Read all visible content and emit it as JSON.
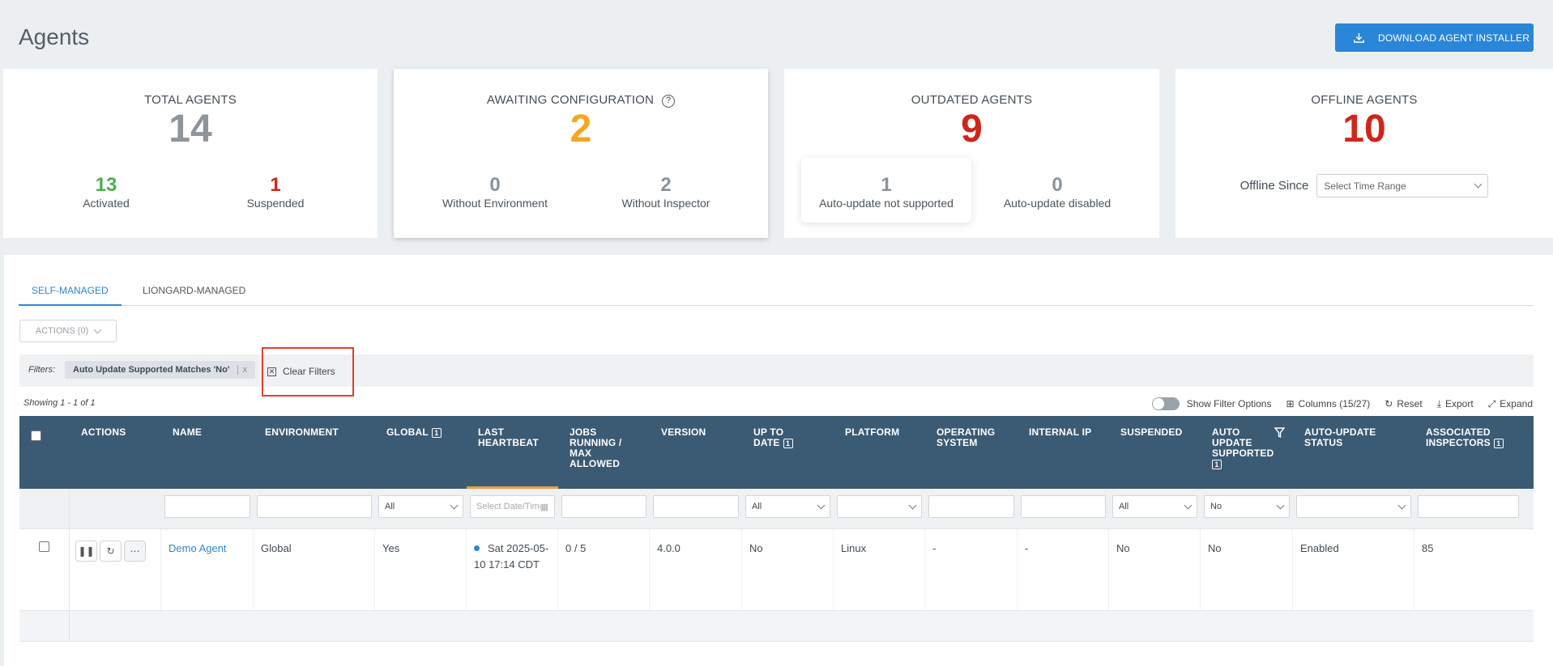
{
  "page": {
    "title": "Agents",
    "download_label": "DOWNLOAD AGENT INSTALLER"
  },
  "cards": {
    "total": {
      "title": "TOTAL AGENTS",
      "value": "14",
      "a_value": "13",
      "a_label": "Activated",
      "b_value": "1",
      "b_label": "Suspended"
    },
    "awaiting": {
      "title": "AWAITING CONFIGURATION",
      "value": "2",
      "a_value": "0",
      "a_label": "Without Environment",
      "b_value": "2",
      "b_label": "Without Inspector"
    },
    "outdated": {
      "title": "OUTDATED AGENTS",
      "value": "9",
      "a_value": "1",
      "a_label": "Auto-update not supported",
      "b_value": "0",
      "b_label": "Auto-update disabled"
    },
    "offline": {
      "title": "OFFLINE AGENTS",
      "value": "10",
      "since_label": "Offline Since",
      "range_placeholder": "Select Time Range"
    }
  },
  "tabs": [
    "SELF-MANAGED",
    "LIONGARD-MANAGED"
  ],
  "actions_label": "ACTIONS (0)",
  "filters": {
    "label": "Filters:",
    "chip": "Auto Update Supported Matches 'No'",
    "chip_close": "x",
    "clear": "Clear Filters"
  },
  "showing": "Showing 1 - 1 of 1",
  "tools": {
    "filter_options": "Show Filter Options",
    "columns": "Columns (15/27)",
    "reset": "Reset",
    "export": "Export",
    "expand": "Expand"
  },
  "columns": {
    "actions": "ACTIONS",
    "name": "NAME",
    "environment": "ENVIRONMENT",
    "global": "GLOBAL",
    "last_heartbeat_1": "LAST",
    "last_heartbeat_2": "HEARTBEAT",
    "jobs_1": "JOBS",
    "jobs_2": "RUNNING /",
    "jobs_3": "MAX",
    "jobs_4": "ALLOWED",
    "version": "VERSION",
    "up_to_date_1": "UP TO",
    "up_to_date_2": "DATE",
    "platform": "PLATFORM",
    "os_1": "OPERATING",
    "os_2": "SYSTEM",
    "internal_ip": "INTERNAL IP",
    "suspended": "SUSPENDED",
    "auto_update_1": "AUTO",
    "auto_update_2": "UPDATE",
    "auto_update_3": "SUPPORTED",
    "au_status_1": "AUTO-UPDATE",
    "au_status_2": "STATUS",
    "inspectors_1": "ASSOCIATED",
    "inspectors_2": "INSPECTORS",
    "info_glyph": "1"
  },
  "filter_row": {
    "global": "All",
    "heartbeat_placeholder": "Select Date/Time",
    "up_to_date": "All",
    "suspended": "All",
    "auto_update": "No"
  },
  "rows": [
    {
      "name": "Demo Agent",
      "environment": "Global",
      "global": "Yes",
      "heartbeat_1": "Sat 2025-05-",
      "heartbeat_2": "10 17:14 CDT",
      "jobs": "0 / 5",
      "version": "4.0.0",
      "up_to_date": "No",
      "platform": "Linux",
      "os": "-",
      "internal_ip": "-",
      "suspended": "No",
      "auto_update": "No",
      "au_status": "Enabled",
      "inspectors": "85"
    }
  ],
  "colors": {
    "accent": "#2a86d8",
    "header": "#3b5a73",
    "warning": "#f5a623",
    "danger": "#d0261a",
    "success": "#4caf50",
    "highlight": "#e23d2e"
  }
}
